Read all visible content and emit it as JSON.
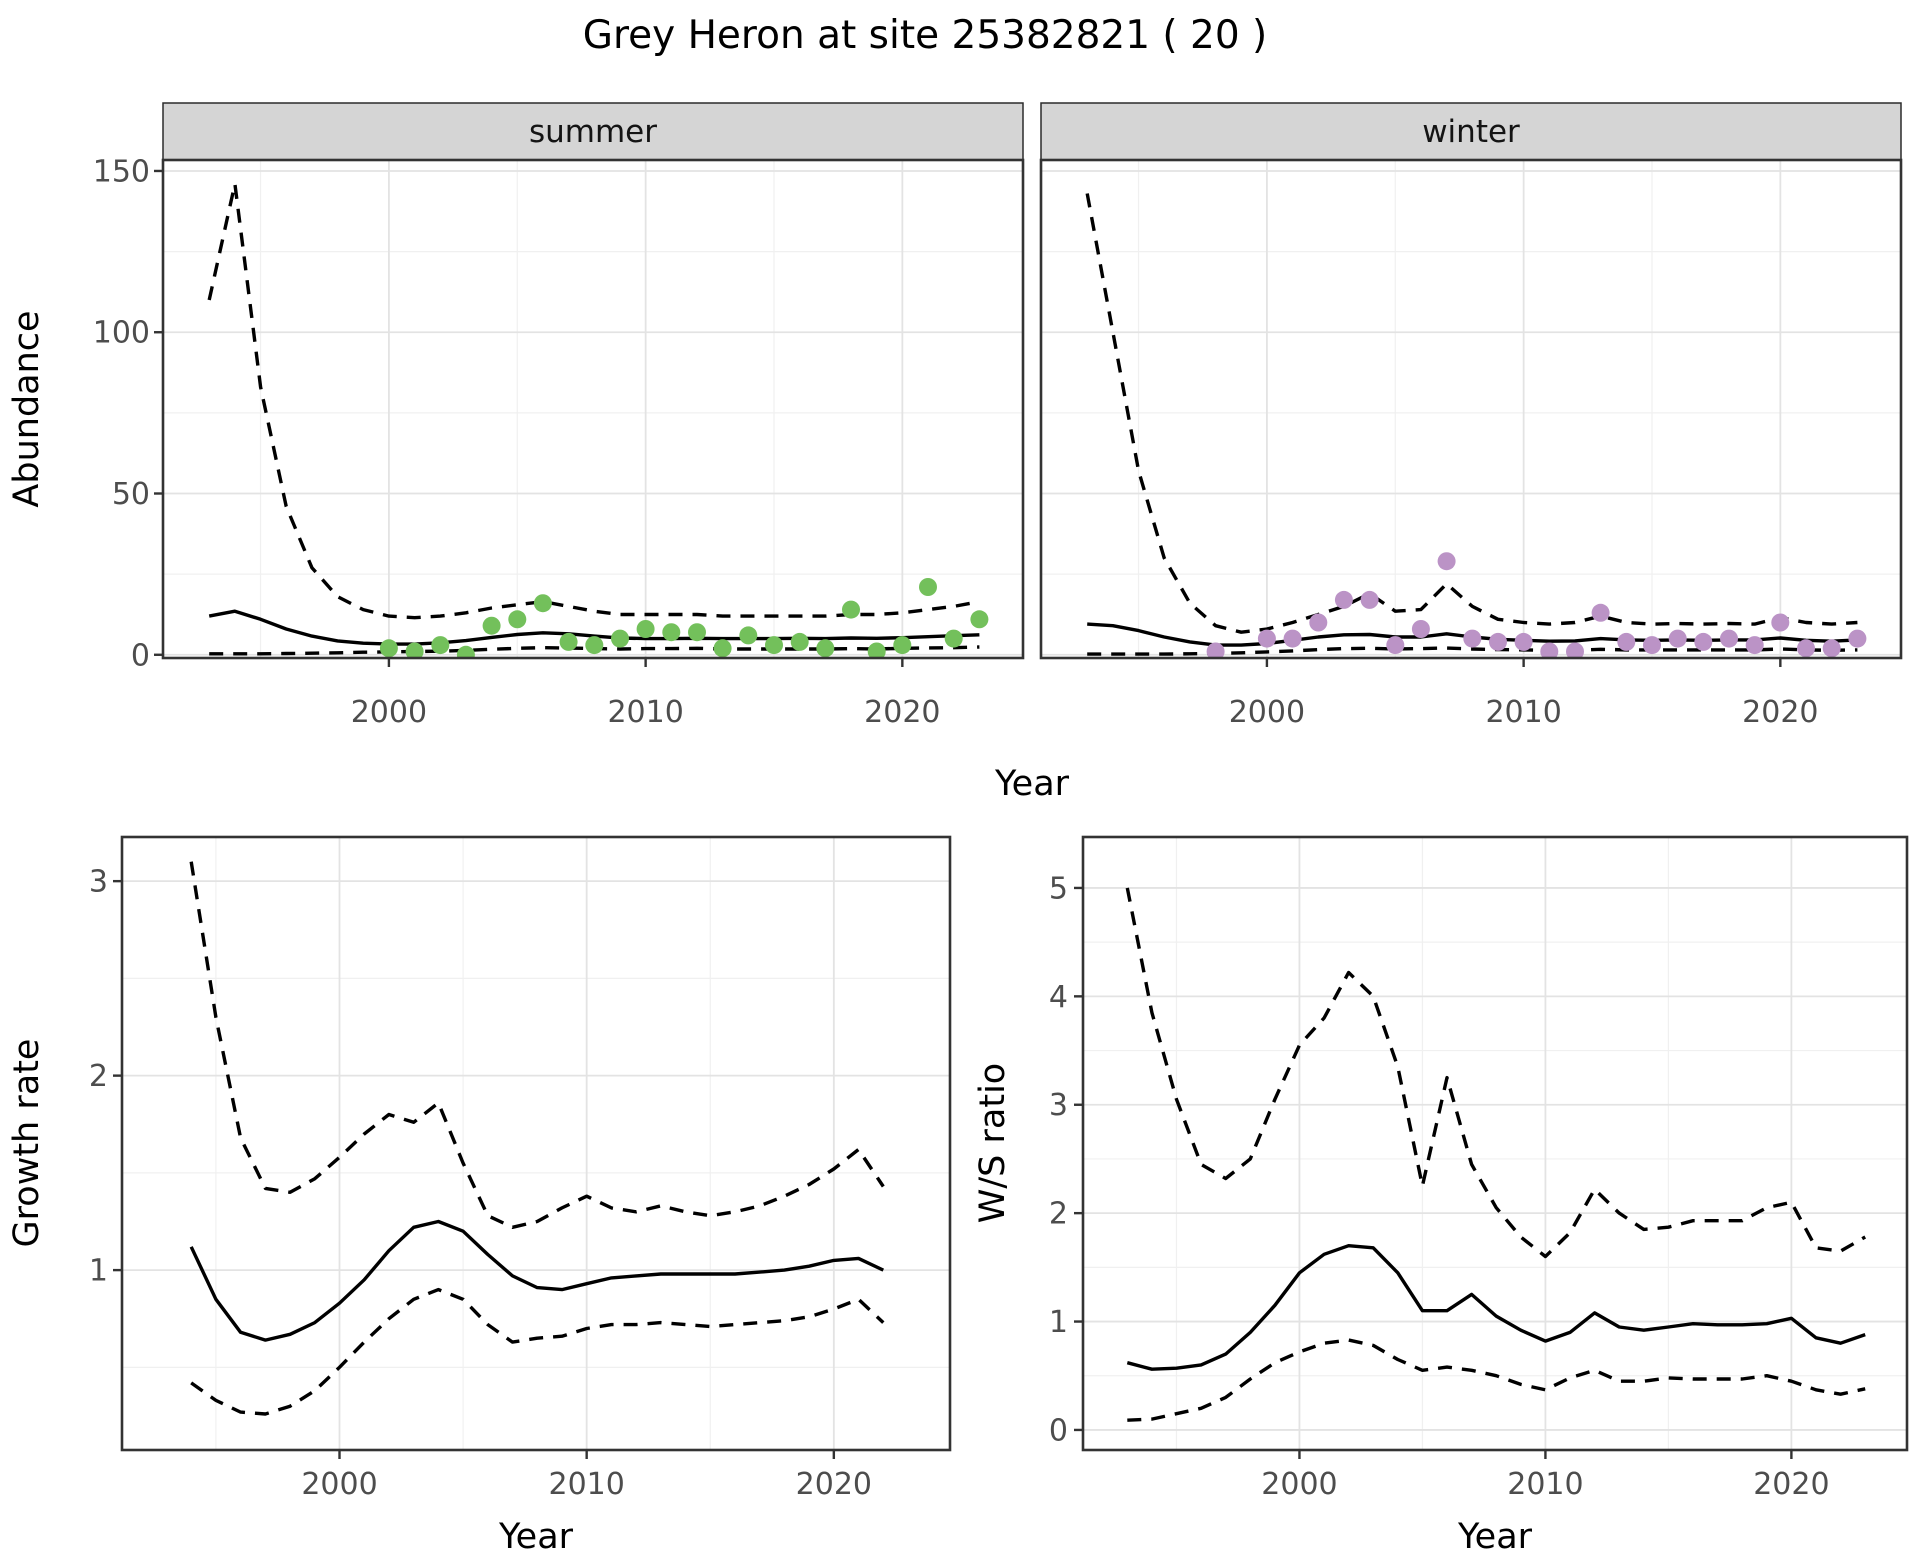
{
  "title": "Grey Heron at site 25382821 ( 20 )",
  "facets": {
    "summer": "summer",
    "winter": "winter"
  },
  "axis_labels": {
    "y_abundance": "Abundance",
    "x_year": "Year",
    "y_growth": "Growth rate",
    "y_ws": "W/S ratio"
  },
  "style": {
    "summer_point_color": "#73C05B",
    "winter_point_color": "#BB93C6",
    "line_color": "#000000",
    "strip_fill": "#D5D5D5",
    "panel_border": "#333333",
    "grid_major": "#E3E3E3",
    "grid_minor": "#F0F0F0",
    "tick_text": "#4d4d4d"
  },
  "chart_data": [
    {
      "id": "summer",
      "type": "line",
      "facet": "summer",
      "xlabel": "Year",
      "ylabel": "Abundance",
      "x_domain": [
        1991.2,
        2024.7
      ],
      "y_domain": [
        -1.0,
        153.4
      ],
      "x_ticks": [
        2000,
        2010,
        2020
      ],
      "x_minor": [
        1995,
        2005,
        2015
      ],
      "y_ticks": [
        0,
        50,
        100,
        150
      ],
      "y_minor": [
        25,
        75,
        125
      ],
      "series": [
        {
          "name": "upper_ci",
          "style": "dashed",
          "x": [
            1993,
            1994,
            1995,
            1996,
            1997,
            1998,
            1999,
            2000,
            2001,
            2002,
            2003,
            2004,
            2005,
            2006,
            2007,
            2008,
            2009,
            2010,
            2011,
            2012,
            2013,
            2014,
            2015,
            2016,
            2017,
            2018,
            2019,
            2020,
            2021,
            2022,
            2023
          ],
          "y": [
            110,
            146,
            83,
            46,
            27,
            18,
            14,
            12,
            11.5,
            12,
            13,
            14.5,
            15.5,
            16.5,
            15,
            13.5,
            12.5,
            12.5,
            12.5,
            12.5,
            12,
            12,
            12,
            12,
            12,
            12.5,
            12.5,
            13,
            14,
            15,
            16.5
          ]
        },
        {
          "name": "fit",
          "style": "solid",
          "x": [
            1993,
            1994,
            1995,
            1996,
            1997,
            1998,
            1999,
            2000,
            2001,
            2002,
            2003,
            2004,
            2005,
            2006,
            2007,
            2008,
            2009,
            2010,
            2011,
            2012,
            2013,
            2014,
            2015,
            2016,
            2017,
            2018,
            2019,
            2020,
            2021,
            2022,
            2023
          ],
          "y": [
            12,
            13.5,
            11,
            8,
            5.8,
            4.3,
            3.6,
            3.3,
            3.3,
            3.7,
            4.4,
            5.4,
            6.3,
            6.8,
            6.5,
            5.8,
            5.2,
            5.0,
            5.0,
            5.1,
            5.0,
            5.0,
            5.0,
            5.1,
            5.0,
            5.2,
            5.1,
            5.3,
            5.6,
            5.9,
            6.2
          ]
        },
        {
          "name": "lower_ci",
          "style": "dashed",
          "x": [
            1993,
            1994,
            1995,
            1996,
            1997,
            1998,
            1999,
            2000,
            2001,
            2002,
            2003,
            2004,
            2005,
            2006,
            2007,
            2008,
            2009,
            2010,
            2011,
            2012,
            2013,
            2014,
            2015,
            2016,
            2017,
            2018,
            2019,
            2020,
            2021,
            2022,
            2023
          ],
          "y": [
            0.3,
            0.3,
            0.3,
            0.4,
            0.5,
            0.6,
            0.8,
            0.9,
            1.0,
            1.1,
            1.4,
            1.7,
            2.0,
            2.2,
            2.1,
            1.9,
            1.8,
            1.9,
            1.9,
            2.0,
            1.8,
            1.8,
            1.8,
            1.8,
            1.8,
            1.9,
            1.8,
            2.0,
            2.1,
            2.2,
            2.4
          ]
        }
      ],
      "points": {
        "name": "observed_counts",
        "color": "#73C05B",
        "x": [
          2000,
          2001,
          2002,
          2003,
          2004,
          2005,
          2006,
          2007,
          2008,
          2009,
          2010,
          2011,
          2012,
          2013,
          2014,
          2015,
          2016,
          2017,
          2018,
          2019,
          2020,
          2021,
          2022,
          2023
        ],
        "y": [
          2,
          1,
          3,
          0,
          9,
          11,
          16,
          4,
          3,
          5,
          8,
          7,
          7,
          2,
          6,
          3,
          4,
          2,
          14,
          1,
          3,
          21,
          5,
          11
        ]
      }
    },
    {
      "id": "winter",
      "type": "line",
      "facet": "winter",
      "xlabel": "Year",
      "ylabel": "Abundance",
      "x_domain": [
        1991.2,
        2024.7
      ],
      "y_domain": [
        -1.0,
        153.4
      ],
      "x_ticks": [
        2000,
        2010,
        2020
      ],
      "x_minor": [
        1995,
        2005,
        2015
      ],
      "y_ticks": [
        0,
        50,
        100,
        150
      ],
      "y_minor": [
        25,
        75,
        125
      ],
      "series": [
        {
          "name": "upper_ci",
          "style": "dashed",
          "x": [
            1993,
            1994,
            1995,
            1996,
            1997,
            1998,
            1999,
            2000,
            2001,
            2002,
            2003,
            2004,
            2005,
            2006,
            2007,
            2008,
            2009,
            2010,
            2011,
            2012,
            2013,
            2014,
            2015,
            2016,
            2017,
            2018,
            2019,
            2020,
            2021,
            2022,
            2023
          ],
          "y": [
            143,
            100,
            57,
            30,
            16,
            9,
            7,
            8,
            10,
            12.5,
            15,
            19,
            13.5,
            14,
            22,
            15,
            11,
            10,
            9.5,
            10,
            12,
            10,
            9.5,
            9.7,
            9.5,
            9.7,
            9.5,
            11.5,
            10,
            9.5,
            10
          ]
        },
        {
          "name": "fit",
          "style": "solid",
          "x": [
            1993,
            1994,
            1995,
            1996,
            1997,
            1998,
            1999,
            2000,
            2001,
            2002,
            2003,
            2004,
            2005,
            2006,
            2007,
            2008,
            2009,
            2010,
            2011,
            2012,
            2013,
            2014,
            2015,
            2016,
            2017,
            2018,
            2019,
            2020,
            2021,
            2022,
            2023
          ],
          "y": [
            9.5,
            9,
            7.5,
            5.5,
            4,
            3,
            3,
            3.5,
            4.5,
            5.5,
            6.2,
            6.3,
            5.5,
            5.5,
            6.5,
            5.5,
            4.8,
            4.5,
            4.2,
            4.3,
            5.0,
            4.6,
            4.5,
            4.6,
            4.5,
            4.6,
            4.6,
            5.2,
            4.5,
            4.2,
            4.6
          ]
        },
        {
          "name": "lower_ci",
          "style": "dashed",
          "x": [
            1993,
            1994,
            1995,
            1996,
            1997,
            1998,
            1999,
            2000,
            2001,
            2002,
            2003,
            2004,
            2005,
            2006,
            2007,
            2008,
            2009,
            2010,
            2011,
            2012,
            2013,
            2014,
            2015,
            2016,
            2017,
            2018,
            2019,
            2020,
            2021,
            2022,
            2023
          ],
          "y": [
            0.2,
            0.2,
            0.2,
            0.2,
            0.3,
            0.4,
            0.6,
            0.9,
            1.2,
            1.6,
            1.9,
            2.0,
            1.8,
            1.9,
            2.1,
            1.8,
            1.6,
            1.5,
            1.4,
            1.4,
            1.7,
            1.5,
            1.5,
            1.5,
            1.5,
            1.5,
            1.5,
            1.8,
            1.5,
            1.4,
            1.5
          ]
        }
      ],
      "points": {
        "name": "observed_counts",
        "color": "#BB93C6",
        "x": [
          1998,
          2000,
          2001,
          2002,
          2003,
          2004,
          2005,
          2006,
          2007,
          2008,
          2009,
          2010,
          2011,
          2012,
          2013,
          2014,
          2015,
          2016,
          2017,
          2018,
          2019,
          2020,
          2021,
          2022,
          2023
        ],
        "y": [
          1,
          5,
          5,
          10,
          17,
          17,
          3,
          8,
          29,
          5,
          4,
          4,
          1,
          1,
          13,
          4,
          3,
          5,
          4,
          5,
          3,
          10,
          2,
          2,
          5
        ]
      }
    },
    {
      "id": "growth",
      "type": "line",
      "facet": null,
      "xlabel": "Year",
      "ylabel": "Growth rate",
      "x_domain": [
        1991.2,
        2024.7
      ],
      "y_domain": [
        0.075,
        3.227
      ],
      "x_ticks": [
        2000,
        2010,
        2020
      ],
      "x_minor": [
        1995,
        2005,
        2015
      ],
      "y_ticks": [
        1,
        2,
        3
      ],
      "y_minor": [
        0.5,
        1.5,
        2.5
      ],
      "series": [
        {
          "name": "upper_ci",
          "style": "dashed",
          "x": [
            1994,
            1995,
            1996,
            1997,
            1998,
            1999,
            2000,
            2001,
            2002,
            2003,
            2004,
            2005,
            2006,
            2007,
            2008,
            2009,
            2010,
            2011,
            2012,
            2013,
            2014,
            2015,
            2016,
            2017,
            2018,
            2019,
            2020,
            2021,
            2022
          ],
          "y": [
            3.1,
            2.3,
            1.68,
            1.42,
            1.4,
            1.47,
            1.58,
            1.7,
            1.8,
            1.76,
            1.86,
            1.55,
            1.28,
            1.22,
            1.25,
            1.32,
            1.38,
            1.32,
            1.3,
            1.33,
            1.3,
            1.28,
            1.3,
            1.33,
            1.38,
            1.44,
            1.52,
            1.62,
            1.43
          ]
        },
        {
          "name": "fit",
          "style": "solid",
          "x": [
            1994,
            1995,
            1996,
            1997,
            1998,
            1999,
            2000,
            2001,
            2002,
            2003,
            2004,
            2005,
            2006,
            2007,
            2008,
            2009,
            2010,
            2011,
            2012,
            2013,
            2014,
            2015,
            2016,
            2017,
            2018,
            2019,
            2020,
            2021,
            2022
          ],
          "y": [
            1.12,
            0.85,
            0.68,
            0.64,
            0.67,
            0.73,
            0.83,
            0.95,
            1.1,
            1.22,
            1.25,
            1.2,
            1.08,
            0.97,
            0.91,
            0.9,
            0.93,
            0.96,
            0.97,
            0.98,
            0.98,
            0.98,
            0.98,
            0.99,
            1.0,
            1.02,
            1.05,
            1.06,
            1.0
          ]
        },
        {
          "name": "lower_ci",
          "style": "dashed",
          "x": [
            1994,
            1995,
            1996,
            1997,
            1998,
            1999,
            2000,
            2001,
            2002,
            2003,
            2004,
            2005,
            2006,
            2007,
            2008,
            2009,
            2010,
            2011,
            2012,
            2013,
            2014,
            2015,
            2016,
            2017,
            2018,
            2019,
            2020,
            2021,
            2022
          ],
          "y": [
            0.42,
            0.33,
            0.27,
            0.26,
            0.3,
            0.38,
            0.5,
            0.63,
            0.75,
            0.85,
            0.9,
            0.85,
            0.72,
            0.63,
            0.65,
            0.66,
            0.7,
            0.72,
            0.72,
            0.73,
            0.72,
            0.71,
            0.72,
            0.73,
            0.74,
            0.76,
            0.8,
            0.85,
            0.73
          ]
        }
      ],
      "points": null
    },
    {
      "id": "ws",
      "type": "line",
      "facet": null,
      "xlabel": "Year",
      "ylabel": "W/S ratio",
      "x_domain": [
        1991.2,
        2024.7
      ],
      "y_domain": [
        -0.185,
        5.47
      ],
      "x_ticks": [
        2000,
        2010,
        2020
      ],
      "x_minor": [
        1995,
        2005,
        2015
      ],
      "y_ticks": [
        0,
        1,
        2,
        3,
        4,
        5
      ],
      "y_minor": [
        0.5,
        1.5,
        2.5,
        3.5,
        4.5
      ],
      "series": [
        {
          "name": "upper_ci",
          "style": "dashed",
          "x": [
            1993,
            1994,
            1995,
            1996,
            1997,
            1998,
            1999,
            2000,
            2001,
            2002,
            2003,
            2004,
            2005,
            2006,
            2007,
            2008,
            2009,
            2010,
            2011,
            2012,
            2013,
            2014,
            2015,
            2016,
            2017,
            2018,
            2019,
            2020,
            2021,
            2022,
            2023
          ],
          "y": [
            5.0,
            3.85,
            3.05,
            2.45,
            2.32,
            2.5,
            3.05,
            3.55,
            3.8,
            4.22,
            4.0,
            3.35,
            2.25,
            3.25,
            2.45,
            2.05,
            1.78,
            1.6,
            1.82,
            2.22,
            2.0,
            1.85,
            1.87,
            1.93,
            1.93,
            1.93,
            2.05,
            2.1,
            1.68,
            1.65,
            1.78
          ]
        },
        {
          "name": "fit",
          "style": "solid",
          "x": [
            1993,
            1994,
            1995,
            1996,
            1997,
            1998,
            1999,
            2000,
            2001,
            2002,
            2003,
            2004,
            2005,
            2006,
            2007,
            2008,
            2009,
            2010,
            2011,
            2012,
            2013,
            2014,
            2015,
            2016,
            2017,
            2018,
            2019,
            2020,
            2021,
            2022,
            2023
          ],
          "y": [
            0.62,
            0.56,
            0.57,
            0.6,
            0.7,
            0.9,
            1.15,
            1.45,
            1.62,
            1.7,
            1.68,
            1.45,
            1.1,
            1.1,
            1.25,
            1.05,
            0.92,
            0.82,
            0.9,
            1.08,
            0.95,
            0.92,
            0.95,
            0.98,
            0.97,
            0.97,
            0.98,
            1.03,
            0.85,
            0.8,
            0.88
          ]
        },
        {
          "name": "lower_ci",
          "style": "dashed",
          "x": [
            1993,
            1994,
            1995,
            1996,
            1997,
            1998,
            1999,
            2000,
            2001,
            2002,
            2003,
            2004,
            2005,
            2006,
            2007,
            2008,
            2009,
            2010,
            2011,
            2012,
            2013,
            2014,
            2015,
            2016,
            2017,
            2018,
            2019,
            2020,
            2021,
            2022,
            2023
          ],
          "y": [
            0.09,
            0.1,
            0.15,
            0.2,
            0.3,
            0.47,
            0.62,
            0.72,
            0.8,
            0.83,
            0.78,
            0.65,
            0.55,
            0.58,
            0.55,
            0.5,
            0.42,
            0.37,
            0.48,
            0.55,
            0.45,
            0.45,
            0.48,
            0.47,
            0.47,
            0.47,
            0.5,
            0.45,
            0.37,
            0.33,
            0.38
          ]
        }
      ],
      "points": null
    }
  ]
}
